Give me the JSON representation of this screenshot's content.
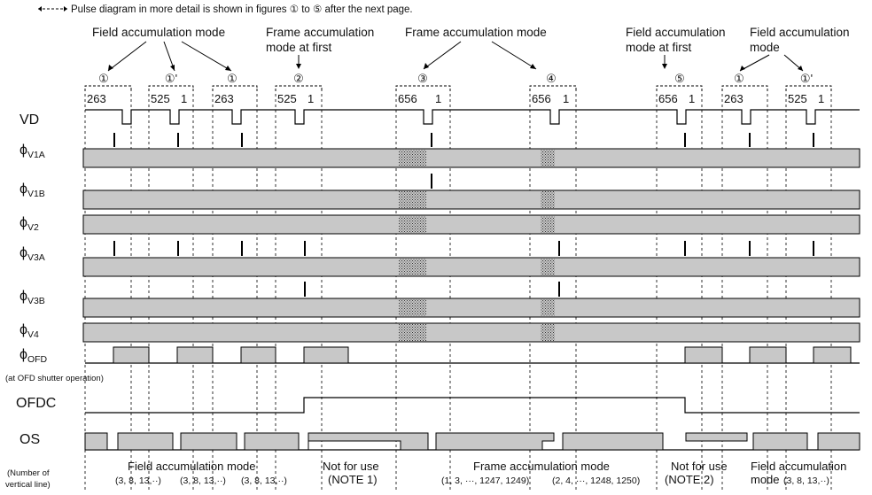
{
  "note_text": "Pulse diagram in more detail is shown in figures ① to ⑤ after the next page.",
  "top_modes": {
    "field1": "Field accumulation mode",
    "frame_first_1": "Frame accumulation",
    "frame_first_2": "mode at first",
    "frame": "Frame accumulation mode",
    "field_first_1": "Field accumulation",
    "field_first_2": "mode at first",
    "field2_1": "Field accumulation",
    "field2_2": "mode"
  },
  "figure_marks": [
    "①",
    "①'",
    "①",
    "②",
    "③",
    "④",
    "⑤",
    "①",
    "①'"
  ],
  "vd_line_numbers": [
    {
      "a": "263",
      "b": ""
    },
    {
      "a": "525",
      "b": "1"
    },
    {
      "a": "263",
      "b": ""
    },
    {
      "a": "525",
      "b": "1"
    },
    {
      "a": "656",
      "b": "1"
    },
    {
      "a": "656",
      "b": "1"
    },
    {
      "a": "656",
      "b": "1"
    },
    {
      "a": "263",
      "b": ""
    },
    {
      "a": "525",
      "b": "1"
    }
  ],
  "signals": {
    "vd": "VD",
    "phi": "ϕ",
    "v1a": "V1A",
    "v1b": "V1B",
    "v2": "V2",
    "v3a": "V3A",
    "v3b": "V3B",
    "v4": "V4",
    "ofd": "OFD",
    "ofdc": "OFDC",
    "os": "OS"
  },
  "ofd_note": "(at OFD shutter operation)",
  "number_label_1": "(Number of",
  "number_label_2": "vertical line)",
  "bottom": {
    "field_mode": "Field accumulation mode",
    "seq_field": [
      "(3, 8, 13,··)",
      "(3, 8, 13,··)",
      "(3, 8, 13,··)"
    ],
    "not_use": "Not for use",
    "note1": "(NOTE 1)",
    "frame_mode": "Frame accumulation mode",
    "seq_frame_a": "(1, 3, ···, 1247, 1249)",
    "seq_frame_b": "(2, 4, ···, 1248, 1250)",
    "note2": "(NOTE 2)",
    "field_mode2_1": "Field accumulation",
    "field_mode2_2": "mode",
    "seq_field2": "(3, 8, 13,··)"
  }
}
